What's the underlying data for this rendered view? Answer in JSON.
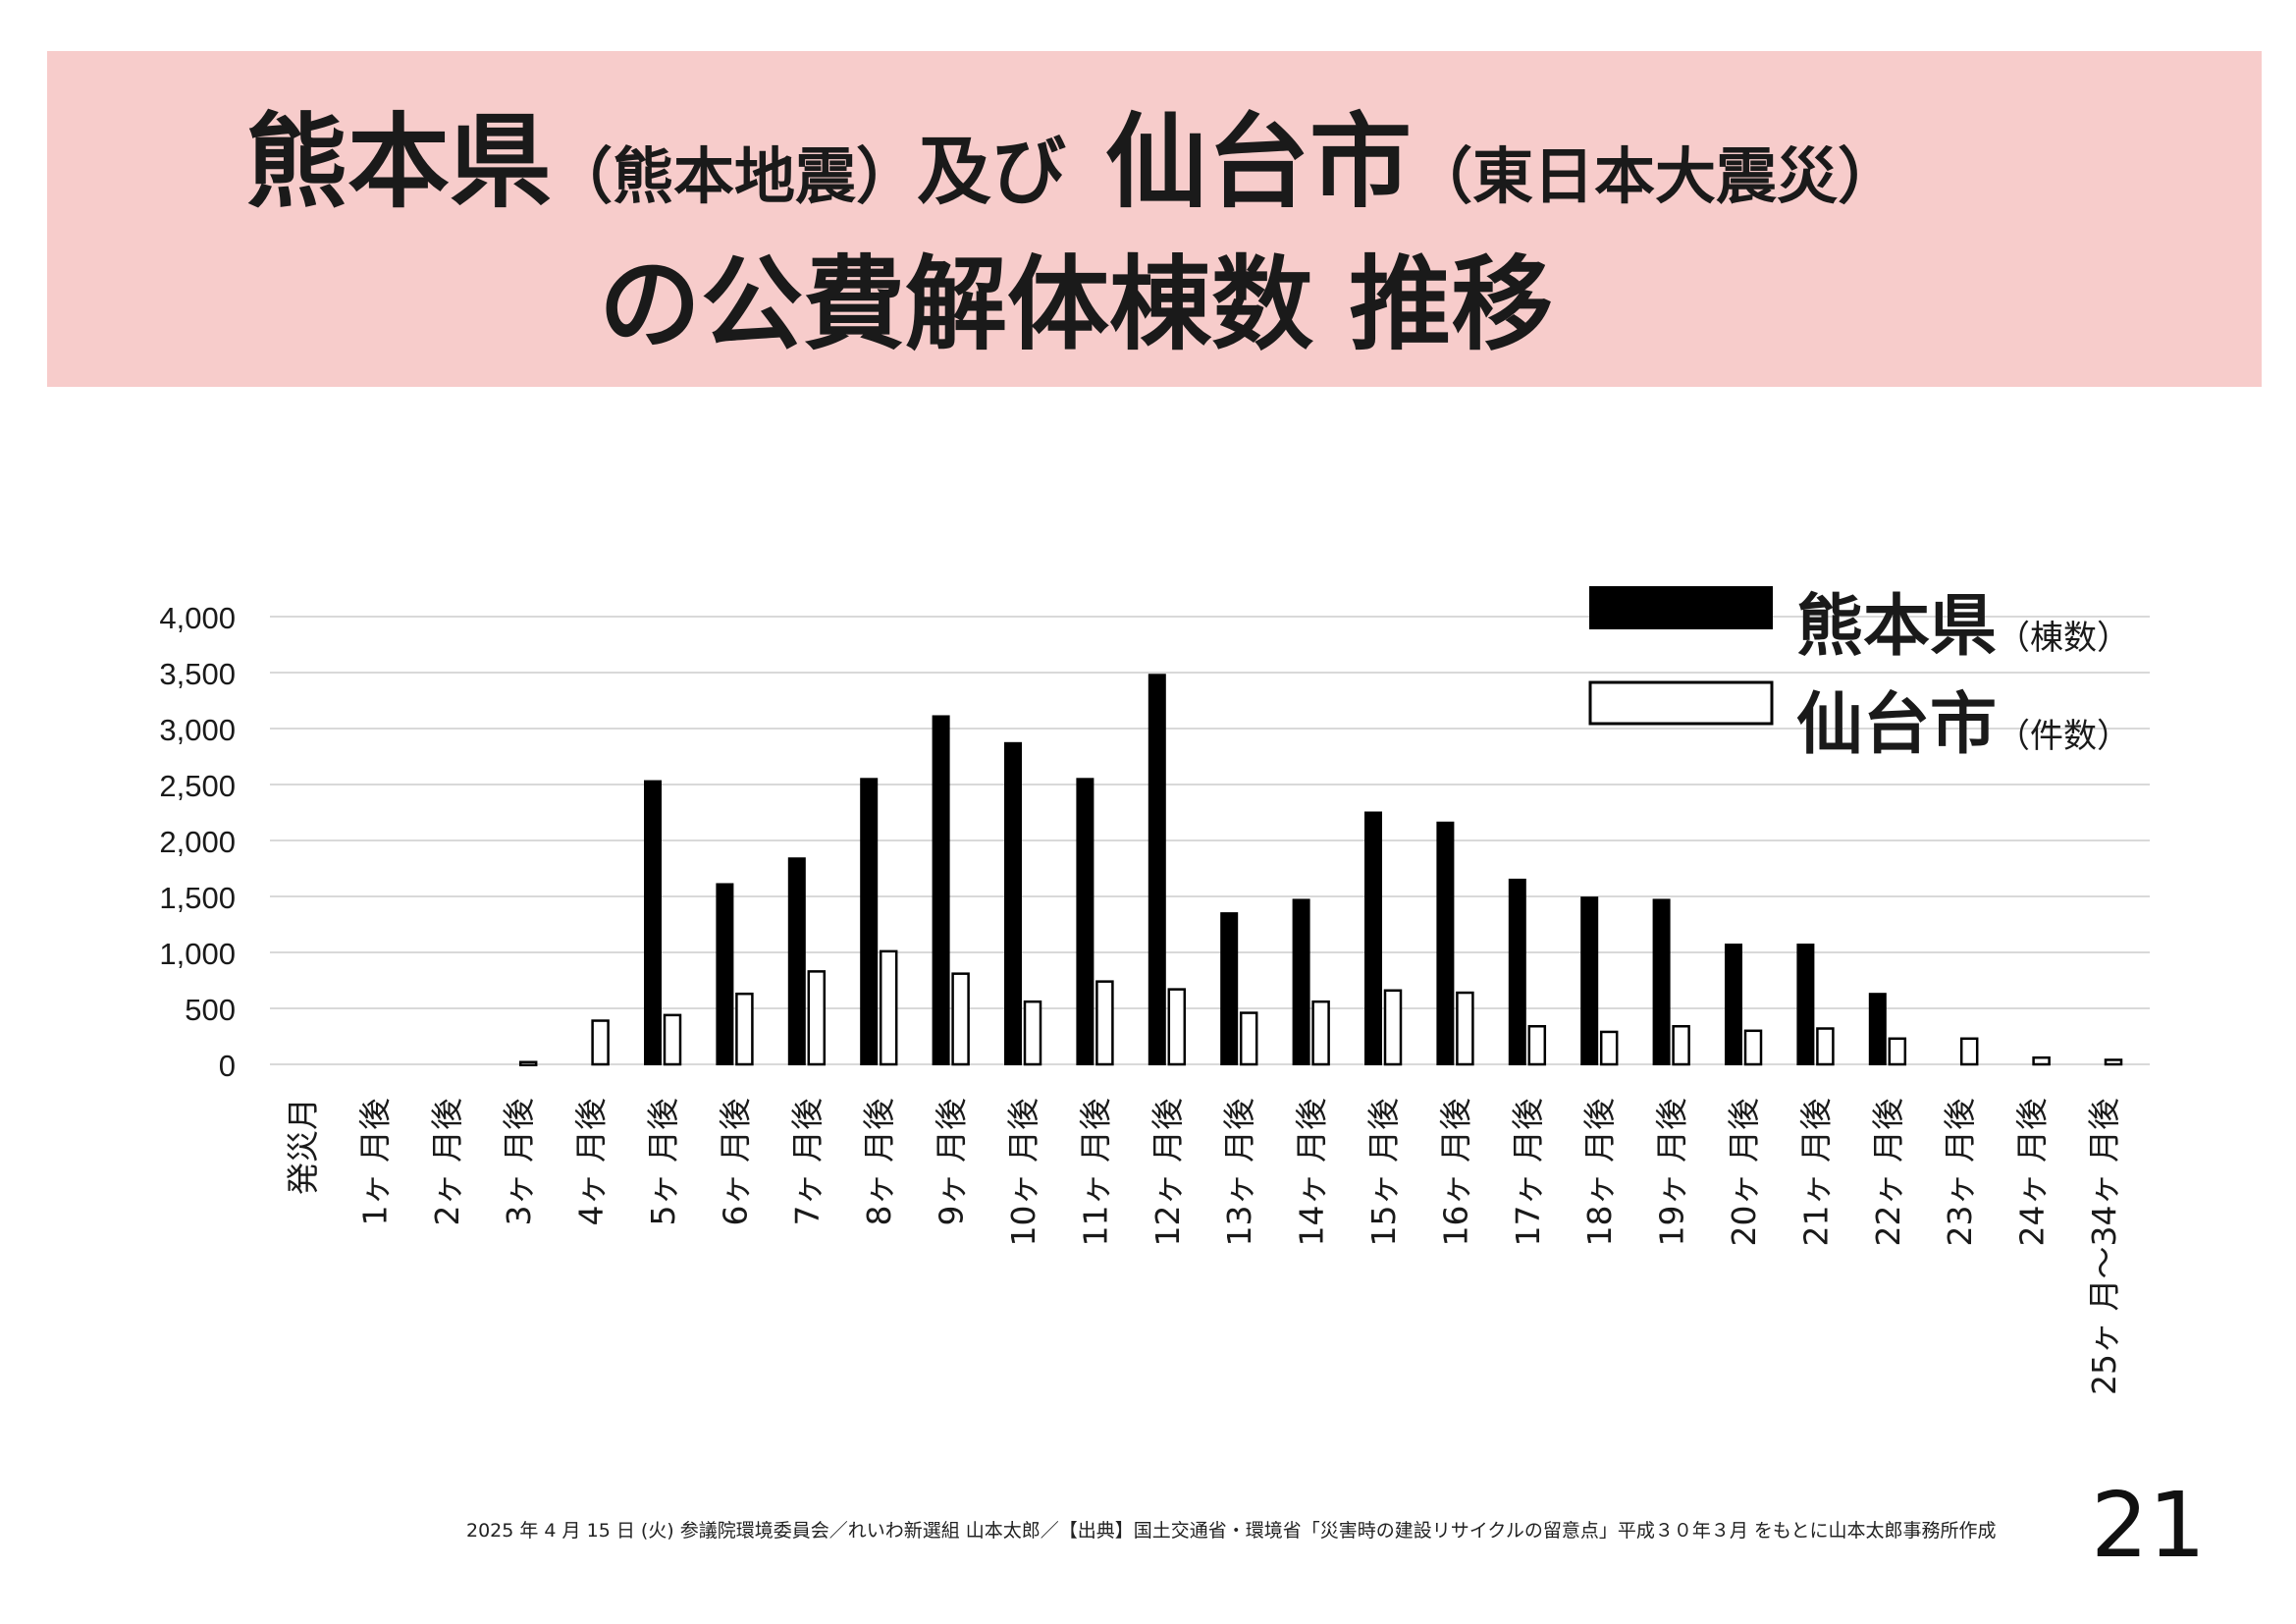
{
  "title": {
    "line1_a": "熊本県",
    "line1_b": "（熊本地震）",
    "line1_c": "及び",
    "line1_d": "仙台市",
    "line1_e": "（東日本大震災）",
    "line2": "の公費解体棟数 推移"
  },
  "legend": [
    {
      "label": "熊本県",
      "unit": "（棟数）"
    },
    {
      "label": "仙台市",
      "unit": "（件数）"
    }
  ],
  "colors": {
    "band": "#f7cccb",
    "kumamoto": "#000000",
    "sendai": "#ffffff",
    "grid": "#d9d9d9"
  },
  "chart_data": {
    "type": "bar",
    "categories": [
      "発災月",
      "1ヶ 月後",
      "2ヶ 月後",
      "3ヶ 月後",
      "4ヶ 月後",
      "5ヶ 月後",
      "6ヶ 月後",
      "7ヶ 月後",
      "8ヶ 月後",
      "9ヶ 月後",
      "10ヶ 月後",
      "11ヶ 月後",
      "12ヶ 月後",
      "13ヶ 月後",
      "14ヶ 月後",
      "15ヶ 月後",
      "16ヶ 月後",
      "17ヶ 月後",
      "18ヶ 月後",
      "19ヶ 月後",
      "20ヶ 月後",
      "21ヶ 月後",
      "22ヶ 月後",
      "23ヶ 月後",
      "24ヶ 月後",
      "25ヶ 月〜34ヶ 月後"
    ],
    "series": [
      {
        "name": "熊本県",
        "values": [
          0,
          0,
          0,
          0,
          0,
          2530,
          1610,
          1840,
          2550,
          3110,
          2870,
          2550,
          3480,
          1350,
          1470,
          2250,
          2160,
          1650,
          1490,
          1470,
          1070,
          1070,
          630,
          0,
          0,
          0
        ]
      },
      {
        "name": "仙台市",
        "values": [
          0,
          0,
          0,
          20,
          390,
          440,
          630,
          830,
          1010,
          810,
          560,
          740,
          670,
          460,
          560,
          660,
          640,
          340,
          290,
          340,
          300,
          320,
          230,
          230,
          60,
          40
        ]
      }
    ],
    "yticks": [
      "0",
      "500",
      "1,000",
      "1,500",
      "2,000",
      "2,500",
      "3,000",
      "3,500",
      "4,000"
    ],
    "ylim": [
      0,
      4000
    ],
    "grid": true,
    "legend_position": "top-right"
  },
  "footer": "2025 年 4 月 15 日 (火) 参議院環境委員会／れいわ新選組 山本太郎／【出典】国土交通省・環境省「災害時の建設リサイクルの留意点」平成３０年３月 をもとに山本太郎事務所作成",
  "page_number": "21"
}
